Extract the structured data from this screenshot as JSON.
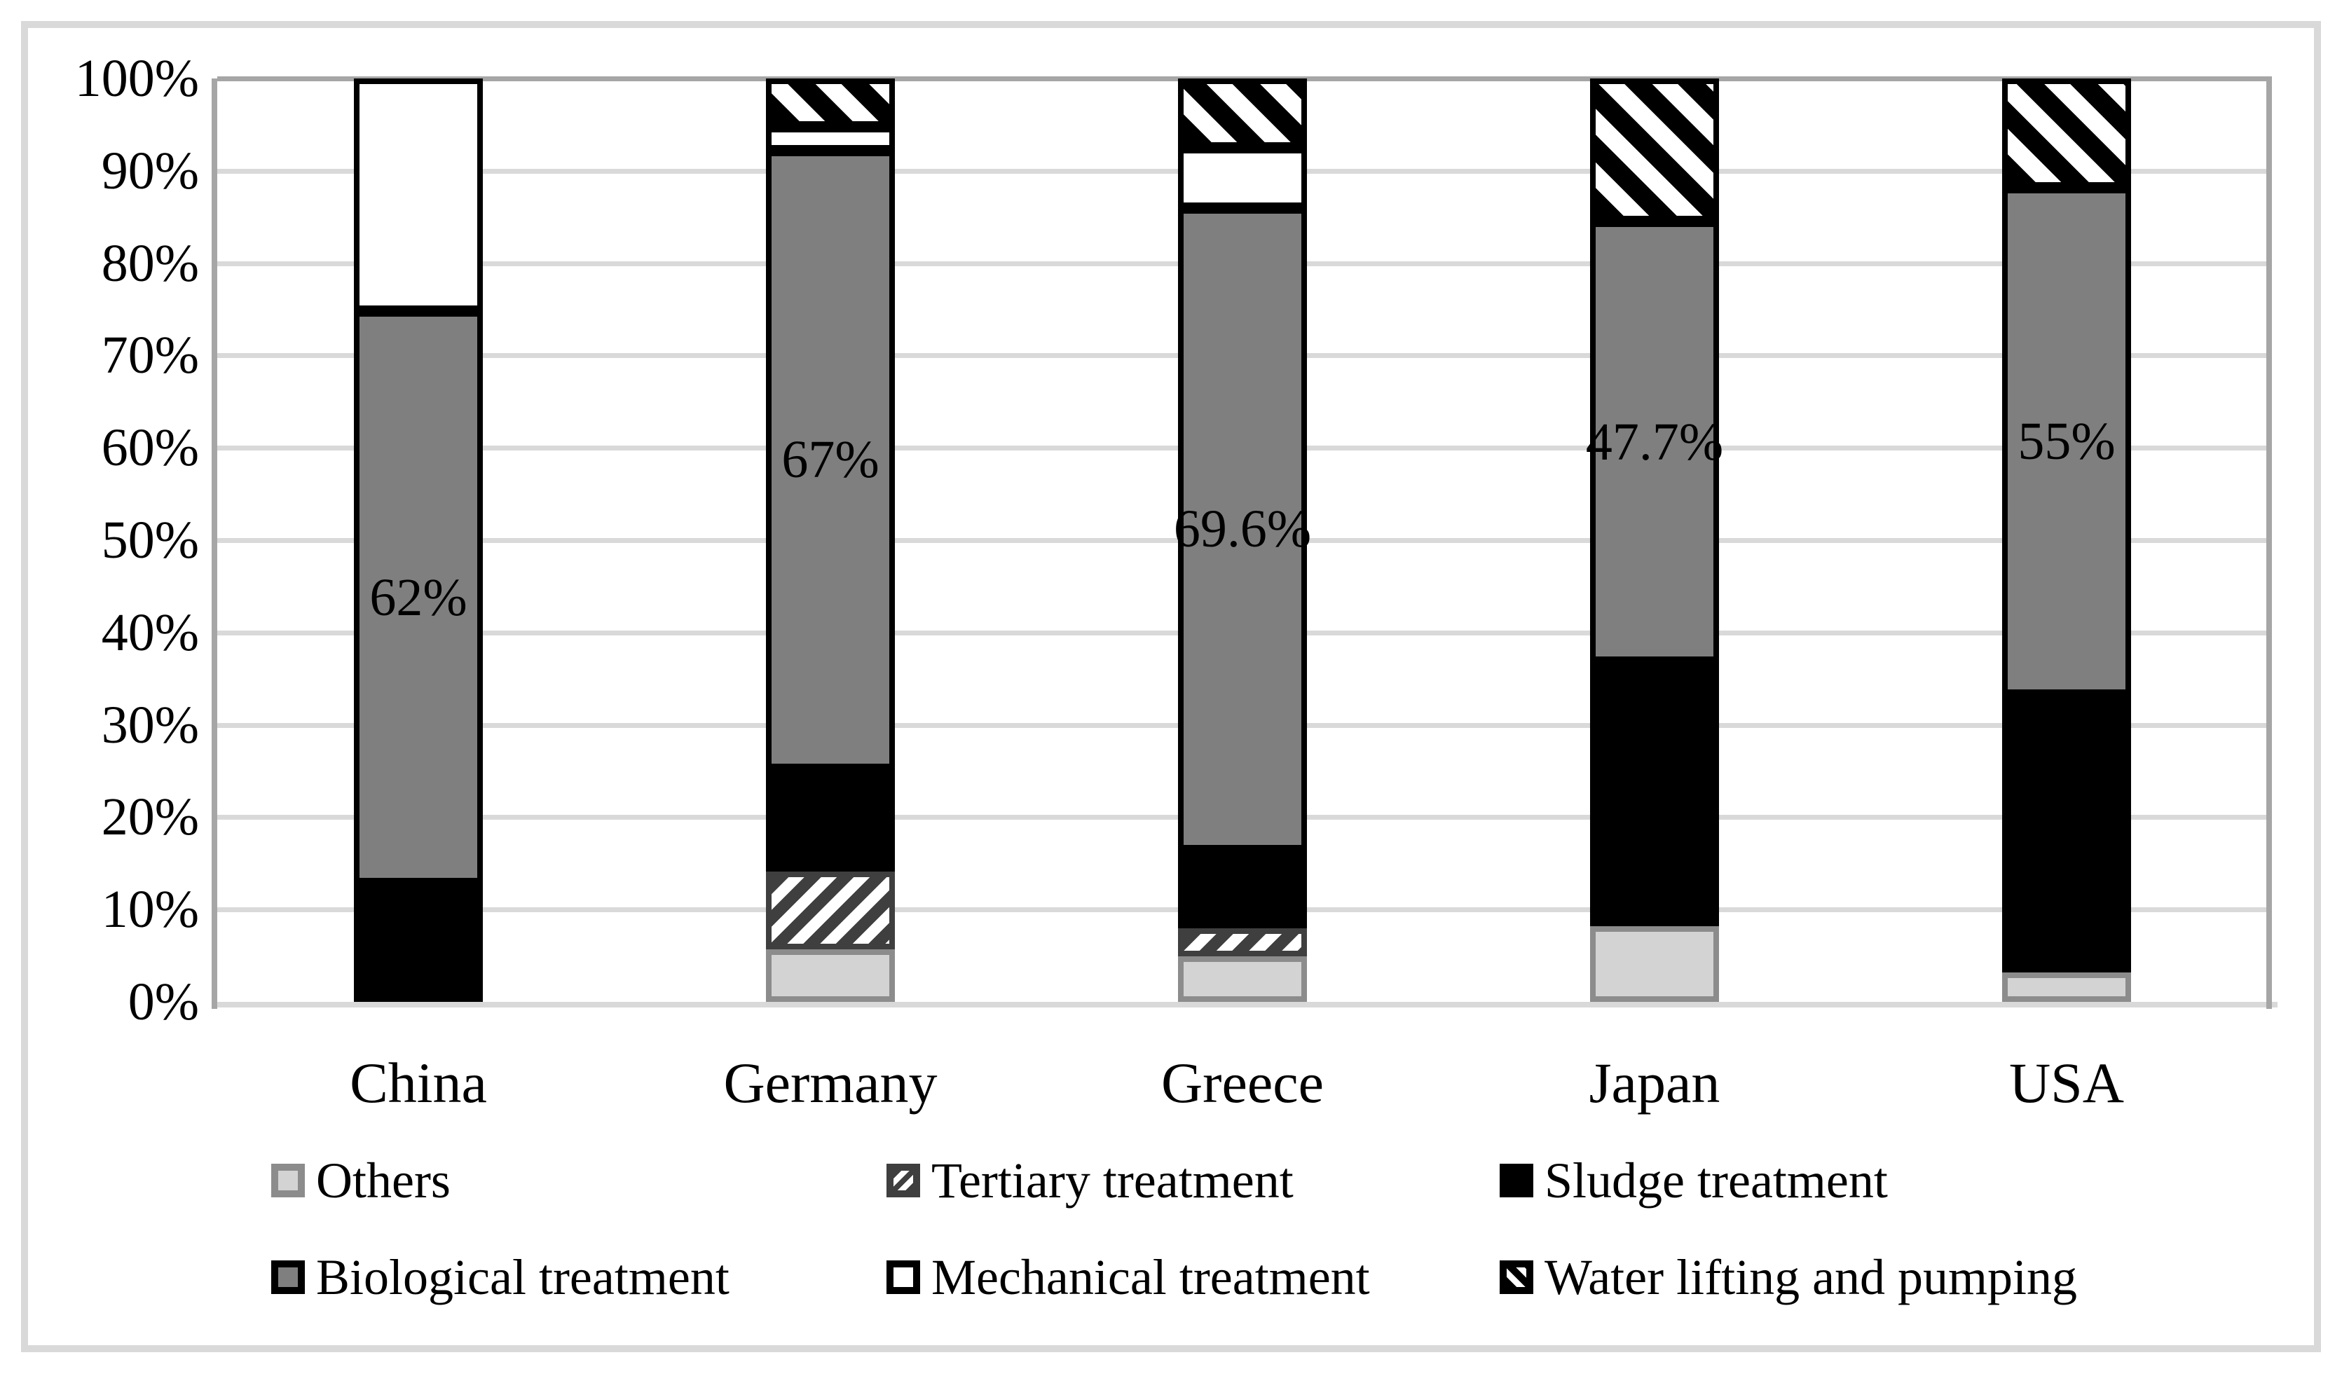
{
  "figure": {
    "background": "#ffffff",
    "outer_border_color": "#d9d9d9"
  },
  "chart_data": {
    "type": "bar",
    "stacked": true,
    "title": "",
    "categories": [
      "China",
      "Germany",
      "Greece",
      "Japan",
      "USA"
    ],
    "series": [
      {
        "name": "Others",
        "values": [
          0,
          5.7,
          4.9,
          8.2,
          3.2
        ],
        "fill": "#d3d3d3",
        "border": "#8c8c8c",
        "pattern": "solid"
      },
      {
        "name": "Tertiary treatment",
        "values": [
          0,
          8.4,
          3.1,
          0,
          0
        ],
        "fill": "#3f3f3f",
        "border": "#3f3f3f",
        "pattern": "diagonal-up-hatch",
        "pattern_color": "#ffffff"
      },
      {
        "name": "Sludge treatment",
        "values": [
          12.8,
          11.1,
          8.4,
          28.6,
          30.0
        ],
        "fill": "#000000",
        "border": "#000000",
        "pattern": "solid"
      },
      {
        "name": "Biological treatment",
        "values": [
          62,
          67,
          69.6,
          47.7,
          55
        ],
        "fill": "#7f7f7f",
        "border": "#000000",
        "pattern": "solid",
        "data_labels": [
          "62%",
          "67%",
          "69.6%",
          "47.7%",
          "55%"
        ]
      },
      {
        "name": "Mechanical treatment",
        "values": [
          25.2,
          2.6,
          6.5,
          0,
          0
        ],
        "fill": "#ffffff",
        "border": "#000000",
        "pattern": "solid"
      },
      {
        "name": "Water lifting and pumping",
        "values": [
          0,
          5.2,
          7.5,
          15.5,
          11.8
        ],
        "fill": "#ffffff",
        "border": "#000000",
        "pattern": "diagonal-down-hatch",
        "pattern_color": "#000000"
      }
    ],
    "y_axis": {
      "min": 0,
      "max": 100,
      "grid": true,
      "ticks": [
        "100%",
        "90%",
        "80%",
        "70%",
        "60%",
        "50%",
        "40%",
        "30%",
        "20%",
        "10%",
        "0%"
      ]
    },
    "x_axis": {
      "labels": [
        "China",
        "Germany",
        "Greece",
        "Japan",
        "USA"
      ]
    },
    "legend": {
      "position": "bottom",
      "rows": [
        [
          "Others",
          "Tertiary treatment",
          "Sludge treatment"
        ],
        [
          "Biological treatment",
          "Mechanical treatment",
          "Water lifting and pumping"
        ]
      ]
    },
    "colors": {
      "gridline": "#d9d9d9",
      "axis_frame": "#a6a6a6",
      "text": "#000000"
    }
  }
}
